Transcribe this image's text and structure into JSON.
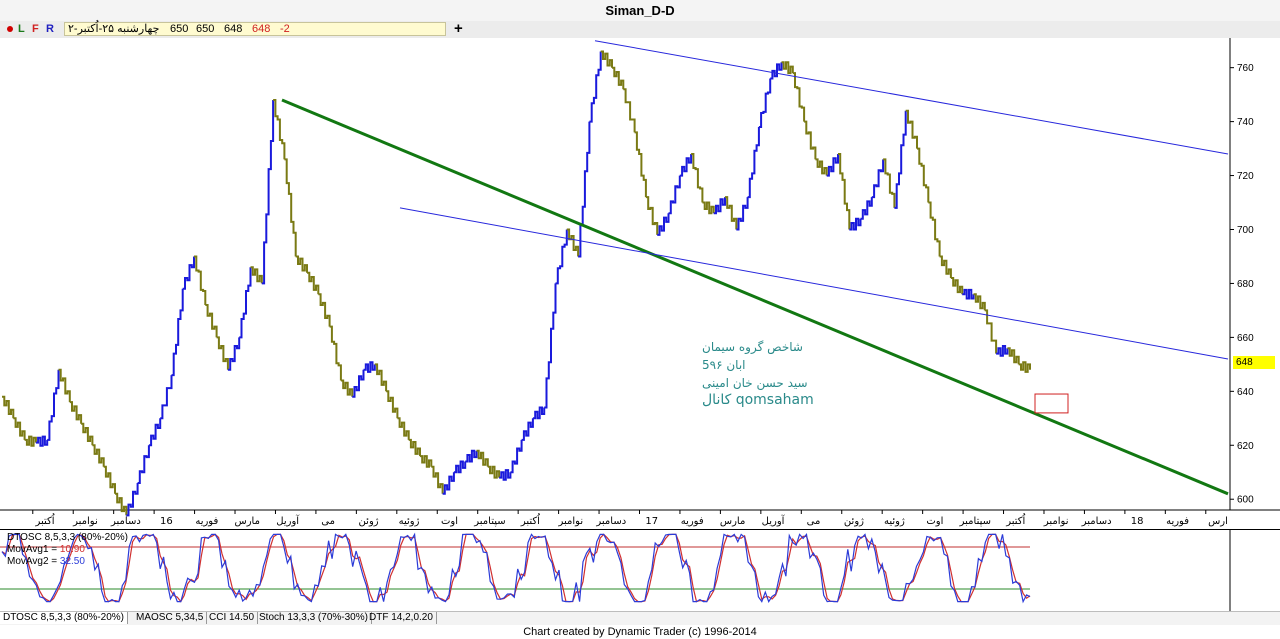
{
  "window": {
    "title": "Siman_D-D"
  },
  "toolbar": {
    "buttons": [
      "L",
      "F",
      "R"
    ],
    "quote": {
      "date": "چهارشنبه ۲۵-اُکتبر-۲",
      "open": "650",
      "high": "650",
      "low": "648",
      "close": "648",
      "change": "-2"
    },
    "add_label": "+"
  },
  "price_axis": {
    "ticks": [
      "760",
      "740",
      "720",
      "700",
      "680",
      "660",
      "640",
      "620",
      "600"
    ],
    "current": "648"
  },
  "time_axis": {
    "labels": [
      "اُکتبر",
      "نوامبر",
      "دسامبر",
      "16",
      "فوریه",
      "مارس",
      "آوریل",
      "می",
      "ژوئن",
      "ژوئیه",
      "اوت",
      "سپتامبر",
      "اُکتبر",
      "نوامبر",
      "دسامبر",
      "17",
      "فوریه",
      "مارس",
      "آوریل",
      "می",
      "ژوئن",
      "ژوئیه",
      "اوت",
      "سپتامبر",
      "اُکتبر",
      "نوامبر",
      "دسامبر",
      "18",
      "فوریه",
      "ارس"
    ]
  },
  "annotation": {
    "line1": "شاخص گروه سیمان",
    "line2": "5ابان ۹۶",
    "line3": "سید حسن خان امینی",
    "line4": "کانال qomsaham"
  },
  "oscillator": {
    "name": "DTOSC 8,5,3,3 (80%-20%)",
    "ma1_label": "MovAvg1 =",
    "ma1_value": "10.90",
    "ma2_label": "MovAvg2 =",
    "ma2_value": "32.50",
    "upper_level": 80,
    "lower_level": 20
  },
  "tabs": [
    "DTOSC 8,5,3,3 (80%-20%)",
    "MAOSC 5,34,5",
    "CCI 14.50",
    "Stoch 13,3,3 (70%-30%)",
    "DTF 14,2,0.20"
  ],
  "footer": "Chart created by Dynamic Trader  (c)  1996-2014",
  "colors": {
    "bar_up": "#1a1adc",
    "bar_down": "#7a7a14",
    "trend_green": "#127812",
    "channel_blue": "#2727dc",
    "osc_fast": "#2b3bd8",
    "osc_slow": "#d03030",
    "level_high": "#c03030",
    "level_low": "#2a8a2a",
    "badge": "#ffff00",
    "annotation": "#2a8a8a"
  },
  "chart_data": {
    "type": "line",
    "title": "Siman_D-D",
    "ylim": [
      596,
      771
    ],
    "x_ticks": [
      "اُکتبر",
      "نوامبر",
      "دسامبر",
      "16",
      "فوریه",
      "مارس",
      "آوریل",
      "می",
      "ژوئن",
      "ژوئیه",
      "اوت",
      "سپتامبر",
      "اُکتبر",
      "نوامبر",
      "دسامبر",
      "17",
      "فوریه",
      "مارس",
      "آوریل",
      "می",
      "ژوئن",
      "ژوئیه",
      "اوت",
      "سپتامبر",
      "اُکتبر",
      "نوامبر",
      "دسامبر",
      "18",
      "فوریه",
      "ارس"
    ],
    "series": [
      {
        "values": [
          638,
          630,
          622,
          621,
          622,
          648,
          636,
          628,
          620,
          612,
          602,
          594,
          606,
          620,
          630,
          646,
          678,
          690,
          672,
          660,
          648,
          660,
          686,
          680,
          748,
          726,
          690,
          684,
          676,
          664,
          644,
          638,
          648,
          650,
          640,
          630,
          622,
          616,
          612,
          602,
          610,
          614,
          618,
          612,
          608,
          610,
          622,
          630,
          634,
          680,
          700,
          690,
          740,
          766,
          760,
          752,
          736,
          712,
          698,
          706,
          720,
          728,
          710,
          706,
          712,
          700,
          712,
          738,
          756,
          762,
          758,
          740,
          726,
          720,
          728,
          700,
          704,
          712,
          726,
          708,
          744,
          730,
          710,
          690,
          682,
          676,
          676,
          670,
          654,
          656,
          650,
          648
        ]
      }
    ],
    "trendlines": [
      {
        "from": [
          "آوریل 16",
          748
        ],
        "to": [
          "ارس",
          602
        ]
      },
      {
        "from": [
          "دسامبر 16",
          770
        ],
        "to": [
          "ارس",
          728
        ]
      },
      {
        "from": [
          "اُکتبر 16",
          708
        ],
        "to": [
          "ارس",
          652
        ]
      }
    ]
  }
}
